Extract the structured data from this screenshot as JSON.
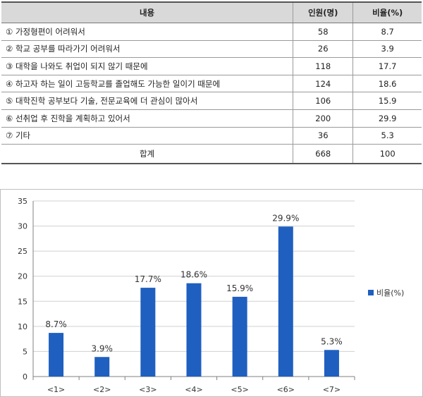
{
  "table": {
    "headers": [
      "내용",
      "인원(명)",
      "비율(%)"
    ],
    "rows": [
      {
        "reason": "① 가정형편이 어려워서",
        "count": "58",
        "ratio": "8.7"
      },
      {
        "reason": "② 학교 공부를 따라가기 어려워서",
        "count": "26",
        "ratio": "3.9"
      },
      {
        "reason": "③ 대학을 나와도 취업이 되지 않기 때문에",
        "count": "118",
        "ratio": "17.7"
      },
      {
        "reason": "④ 하고자 하는 일이 고등학교를 졸업해도 가능한 일이기 때문에",
        "count": "124",
        "ratio": "18.6"
      },
      {
        "reason": "⑤ 대학진학 공부보다 기술, 전문교육에 더 관심이 많아서",
        "count": "106",
        "ratio": "15.9"
      },
      {
        "reason": "⑥ 선취업 후 진학을 계획하고 있어서",
        "count": "200",
        "ratio": "29.9"
      },
      {
        "reason": "⑦ 기타",
        "count": "36",
        "ratio": "5.3"
      }
    ],
    "total": {
      "label": "합계",
      "count": "668",
      "ratio": "100"
    }
  },
  "chart_data": {
    "type": "bar",
    "categories": [
      "<1>",
      "<2>",
      "<3>",
      "<4>",
      "<5>",
      "<6>",
      "<7>"
    ],
    "series": [
      {
        "name": "비율(%)",
        "values": [
          8.7,
          3.9,
          17.7,
          18.6,
          15.9,
          29.9,
          5.3
        ],
        "color": "#1f5fbf"
      }
    ],
    "data_labels": [
      "8.7%",
      "3.9%",
      "17.7%",
      "18.6%",
      "15.9%",
      "29.9%",
      "5.3%"
    ],
    "ylim": [
      0,
      35
    ],
    "yticks": [
      0,
      5,
      10,
      15,
      20,
      25,
      30,
      35
    ],
    "grid": true,
    "legend": "right"
  }
}
